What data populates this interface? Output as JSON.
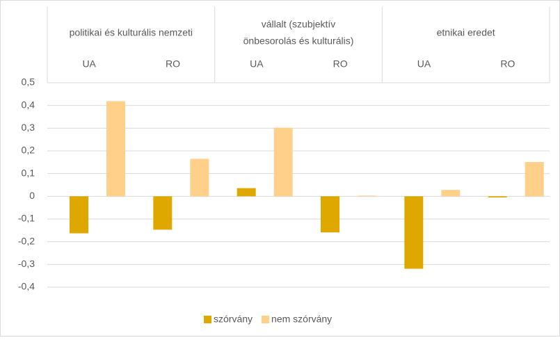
{
  "chart_data": {
    "type": "bar",
    "groups": [
      {
        "label": [
          "politikai és kulturális nemzeti"
        ],
        "categories": [
          "UA",
          "RO"
        ]
      },
      {
        "label": [
          "vállalt (szubjektív",
          "önbesorolás és kulturális)"
        ],
        "categories": [
          "UA",
          "RO"
        ]
      },
      {
        "label": [
          "etnikai eredet"
        ],
        "categories": [
          "UA",
          "RO"
        ]
      }
    ],
    "series": [
      {
        "name": "szórvány",
        "color": "#dfa800",
        "values": [
          -0.163,
          -0.147,
          0.036,
          -0.159,
          -0.319,
          -0.005
        ]
      },
      {
        "name": "nem szórvány",
        "color": "#ffd08a",
        "values": [
          0.419,
          0.165,
          0.302,
          0.003,
          0.028,
          0.151
        ]
      }
    ],
    "ylim": [
      -0.4,
      0.5
    ],
    "yticks": [
      {
        "value": -0.4,
        "label": "-0,4"
      },
      {
        "value": -0.3,
        "label": "-0,3"
      },
      {
        "value": -0.2,
        "label": "-0,2"
      },
      {
        "value": -0.1,
        "label": "-0,1"
      },
      0,
      {
        "value": 0.1,
        "label": "0,1"
      },
      {
        "value": 0.2,
        "label": "0,2"
      },
      {
        "value": 0.3,
        "label": "0,3"
      },
      {
        "value": 0.4,
        "label": "0,4"
      },
      {
        "value": 0.5,
        "label": "0,5"
      }
    ],
    "grid": true,
    "legend": "bottom"
  }
}
